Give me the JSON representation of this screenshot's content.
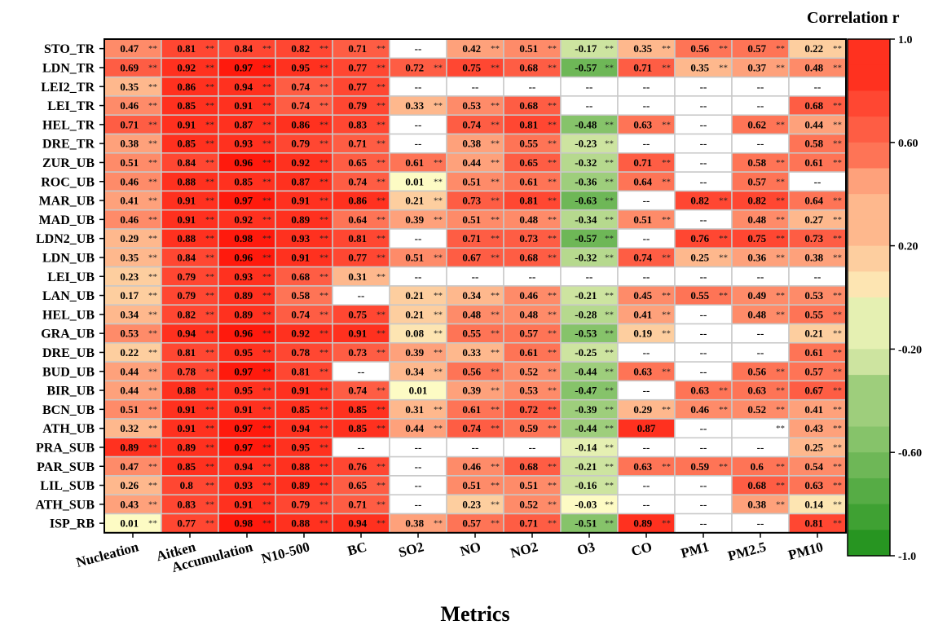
{
  "chart_data": {
    "type": "heatmap",
    "xlabel": "Metrics",
    "colorbar": {
      "title": "Correlation r",
      "range": [
        -1.0,
        1.0
      ],
      "ticks": [
        "1.0",
        "0.60",
        "0.20",
        "-0.20",
        "-0.60",
        "-1.0"
      ],
      "colors": {
        "negative": "#0f8a0f",
        "zero": "#fdfbc4",
        "positive": "#ff1a0d"
      }
    },
    "columns": [
      "Nucleation",
      "Aitken",
      "Accumulation",
      "N10-500",
      "BC",
      "SO2",
      "NO",
      "NO2",
      "O3",
      "CO",
      "PM1",
      "PM2.5",
      "PM10"
    ],
    "rows": [
      "STO_TR",
      "LDN_TR",
      "LEI2_TR",
      "LEI_TR",
      "HEL_TR",
      "DRE_TR",
      "ZUR_UB",
      "ROC_UB",
      "MAR_UB",
      "MAD_UB",
      "LDN2_UB",
      "LDN_UB",
      "LEI_UB",
      "LAN_UB",
      "HEL_UB",
      "GRA_UB",
      "DRE_UB",
      "BUD_UB",
      "BIR_UB",
      "BCN_UB",
      "ATH_UB",
      "PRA_SUB",
      "PAR_SUB",
      "LIL_SUB",
      "ATH_SUB",
      "ISP_RB"
    ],
    "missing_label": "--",
    "significance_mark": "**",
    "cells": [
      [
        [
          0.47,
          "**"
        ],
        [
          0.81,
          "**"
        ],
        [
          0.84,
          "**"
        ],
        [
          0.82,
          "**"
        ],
        [
          0.71,
          "**"
        ],
        null,
        [
          0.42,
          "**"
        ],
        [
          0.51,
          "**"
        ],
        [
          -0.17,
          "**"
        ],
        [
          0.35,
          "**"
        ],
        [
          0.56,
          "**"
        ],
        [
          0.57,
          "**"
        ],
        [
          0.22,
          "**"
        ]
      ],
      [
        [
          0.69,
          "**"
        ],
        [
          0.92,
          "**"
        ],
        [
          0.97,
          "**"
        ],
        [
          0.95,
          "**"
        ],
        [
          0.77,
          "**"
        ],
        [
          0.72,
          "**"
        ],
        [
          0.75,
          "**"
        ],
        [
          0.68,
          "**"
        ],
        [
          -0.57,
          "**"
        ],
        [
          0.71,
          "**"
        ],
        [
          0.35,
          "**"
        ],
        [
          0.37,
          "**"
        ],
        [
          0.48,
          "**"
        ]
      ],
      [
        [
          0.35,
          "**"
        ],
        [
          0.86,
          "**"
        ],
        [
          0.94,
          "**"
        ],
        [
          0.74,
          "**"
        ],
        [
          0.77,
          "**"
        ],
        null,
        null,
        null,
        null,
        null,
        null,
        null,
        null
      ],
      [
        [
          0.46,
          "**"
        ],
        [
          0.85,
          "**"
        ],
        [
          0.91,
          "**"
        ],
        [
          0.74,
          "**"
        ],
        [
          0.79,
          "**"
        ],
        [
          0.33,
          "**"
        ],
        [
          0.53,
          "**"
        ],
        [
          0.68,
          "**"
        ],
        null,
        null,
        null,
        null,
        [
          0.68,
          "**"
        ]
      ],
      [
        [
          0.71,
          "**"
        ],
        [
          0.91,
          "**"
        ],
        [
          0.87,
          "**"
        ],
        [
          0.86,
          "**"
        ],
        [
          0.83,
          "**"
        ],
        null,
        [
          0.74,
          "**"
        ],
        [
          0.81,
          "**"
        ],
        [
          -0.48,
          "**"
        ],
        [
          0.63,
          "**"
        ],
        null,
        [
          0.62,
          "**"
        ],
        [
          0.44,
          "**"
        ]
      ],
      [
        [
          0.38,
          "**"
        ],
        [
          0.85,
          "**"
        ],
        [
          0.93,
          "**"
        ],
        [
          0.79,
          "**"
        ],
        [
          0.71,
          "**"
        ],
        null,
        [
          0.38,
          "**"
        ],
        [
          0.55,
          "**"
        ],
        [
          -0.23,
          "**"
        ],
        null,
        null,
        null,
        [
          0.58,
          "**"
        ]
      ],
      [
        [
          0.51,
          "**"
        ],
        [
          0.84,
          "**"
        ],
        [
          0.96,
          "**"
        ],
        [
          0.92,
          "**"
        ],
        [
          0.65,
          "**"
        ],
        [
          0.61,
          "**"
        ],
        [
          0.44,
          "**"
        ],
        [
          0.65,
          "**"
        ],
        [
          -0.32,
          "**"
        ],
        [
          0.71,
          "**"
        ],
        null,
        [
          0.58,
          "**"
        ],
        [
          0.61,
          "**"
        ]
      ],
      [
        [
          0.46,
          "**"
        ],
        [
          0.88,
          "**"
        ],
        [
          0.85,
          "**"
        ],
        [
          0.87,
          "**"
        ],
        [
          0.74,
          "**"
        ],
        [
          0.01,
          "**"
        ],
        [
          0.51,
          "**"
        ],
        [
          0.61,
          "**"
        ],
        [
          -0.36,
          "**"
        ],
        [
          0.64,
          "**"
        ],
        null,
        [
          0.57,
          "**"
        ],
        null
      ],
      [
        [
          0.41,
          "**"
        ],
        [
          0.91,
          "**"
        ],
        [
          0.97,
          "**"
        ],
        [
          0.91,
          "**"
        ],
        [
          0.86,
          "**"
        ],
        [
          0.21,
          "**"
        ],
        [
          0.73,
          "**"
        ],
        [
          0.81,
          "**"
        ],
        [
          -0.63,
          "**"
        ],
        null,
        [
          0.82,
          "**"
        ],
        [
          0.82,
          "**"
        ],
        [
          0.64,
          "**"
        ]
      ],
      [
        [
          0.46,
          "**"
        ],
        [
          0.91,
          "**"
        ],
        [
          0.92,
          "**"
        ],
        [
          0.89,
          "**"
        ],
        [
          0.64,
          "**"
        ],
        [
          0.39,
          "**"
        ],
        [
          0.51,
          "**"
        ],
        [
          0.48,
          "**"
        ],
        [
          -0.34,
          "**"
        ],
        [
          0.51,
          "**"
        ],
        null,
        [
          0.48,
          "**"
        ],
        [
          0.27,
          "**"
        ]
      ],
      [
        [
          0.29,
          "**"
        ],
        [
          0.88,
          "**"
        ],
        [
          0.98,
          "**"
        ],
        [
          0.93,
          "**"
        ],
        [
          0.81,
          "**"
        ],
        null,
        [
          0.71,
          "**"
        ],
        [
          0.73,
          "**"
        ],
        [
          -0.57,
          "**"
        ],
        null,
        [
          0.76,
          "**"
        ],
        [
          0.75,
          "**"
        ],
        [
          0.73,
          "**"
        ]
      ],
      [
        [
          0.35,
          "**"
        ],
        [
          0.84,
          "**"
        ],
        [
          0.96,
          "**"
        ],
        [
          0.91,
          "**"
        ],
        [
          0.77,
          "**"
        ],
        [
          0.51,
          "**"
        ],
        [
          0.67,
          "**"
        ],
        [
          0.68,
          "**"
        ],
        [
          -0.32,
          "**"
        ],
        [
          0.74,
          "**"
        ],
        [
          0.25,
          "**"
        ],
        [
          0.36,
          "**"
        ],
        [
          0.38,
          "**"
        ]
      ],
      [
        [
          0.23,
          "**"
        ],
        [
          0.79,
          "**"
        ],
        [
          0.93,
          "**"
        ],
        [
          0.68,
          "**"
        ],
        [
          0.31,
          "**"
        ],
        null,
        null,
        null,
        null,
        null,
        null,
        null,
        null
      ],
      [
        [
          0.17,
          "**"
        ],
        [
          0.79,
          "**"
        ],
        [
          0.89,
          "**"
        ],
        [
          0.58,
          "**"
        ],
        null,
        [
          0.21,
          "**"
        ],
        [
          0.34,
          "**"
        ],
        [
          0.46,
          "**"
        ],
        [
          -0.21,
          "**"
        ],
        [
          0.45,
          "**"
        ],
        [
          0.55,
          "**"
        ],
        [
          0.49,
          "**"
        ],
        [
          0.53,
          "**"
        ]
      ],
      [
        [
          0.34,
          "**"
        ],
        [
          0.82,
          "**"
        ],
        [
          0.89,
          "**"
        ],
        [
          0.74,
          "**"
        ],
        [
          0.75,
          "**"
        ],
        [
          0.21,
          "**"
        ],
        [
          0.48,
          "**"
        ],
        [
          0.48,
          "**"
        ],
        [
          -0.28,
          "**"
        ],
        [
          0.41,
          "**"
        ],
        null,
        [
          0.48,
          "**"
        ],
        [
          0.55,
          "**"
        ]
      ],
      [
        [
          0.53,
          "**"
        ],
        [
          0.94,
          "**"
        ],
        [
          0.96,
          "**"
        ],
        [
          0.92,
          "**"
        ],
        [
          0.91,
          "**"
        ],
        [
          0.08,
          "**"
        ],
        [
          0.55,
          "**"
        ],
        [
          0.57,
          "**"
        ],
        [
          -0.53,
          "**"
        ],
        [
          0.19,
          "**"
        ],
        null,
        null,
        [
          0.21,
          "**"
        ]
      ],
      [
        [
          0.22,
          "**"
        ],
        [
          0.81,
          "**"
        ],
        [
          0.95,
          "**"
        ],
        [
          0.78,
          "**"
        ],
        [
          0.73,
          "**"
        ],
        [
          0.39,
          "**"
        ],
        [
          0.33,
          "**"
        ],
        [
          0.61,
          "**"
        ],
        [
          -0.25,
          "**"
        ],
        null,
        null,
        null,
        [
          0.61,
          "**"
        ]
      ],
      [
        [
          0.44,
          "**"
        ],
        [
          0.78,
          "**"
        ],
        [
          0.97,
          "**"
        ],
        [
          0.81,
          "**"
        ],
        null,
        [
          0.34,
          "**"
        ],
        [
          0.56,
          "**"
        ],
        [
          0.52,
          "**"
        ],
        [
          -0.44,
          "**"
        ],
        [
          0.63,
          "**"
        ],
        null,
        [
          0.56,
          "**"
        ],
        [
          0.57,
          "**"
        ]
      ],
      [
        [
          0.44,
          "**"
        ],
        [
          0.88,
          "**"
        ],
        [
          0.95,
          "**"
        ],
        [
          0.91,
          "**"
        ],
        [
          0.74,
          "**"
        ],
        [
          0.01,
          ""
        ],
        [
          0.39,
          "**"
        ],
        [
          0.53,
          "**"
        ],
        [
          -0.47,
          "**"
        ],
        null,
        [
          0.63,
          "**"
        ],
        [
          0.63,
          "**"
        ],
        [
          0.67,
          "**"
        ]
      ],
      [
        [
          0.51,
          "**"
        ],
        [
          0.91,
          "**"
        ],
        [
          0.91,
          "**"
        ],
        [
          0.85,
          "**"
        ],
        [
          0.85,
          "**"
        ],
        [
          0.31,
          "**"
        ],
        [
          0.61,
          "**"
        ],
        [
          0.72,
          "**"
        ],
        [
          -0.39,
          "**"
        ],
        [
          0.29,
          "**"
        ],
        [
          0.46,
          "**"
        ],
        [
          0.52,
          "**"
        ],
        [
          0.41,
          "**"
        ]
      ],
      [
        [
          0.32,
          "**"
        ],
        [
          0.91,
          "**"
        ],
        [
          0.97,
          "**"
        ],
        [
          0.94,
          "**"
        ],
        [
          0.85,
          "**"
        ],
        [
          0.44,
          "**"
        ],
        [
          0.74,
          "**"
        ],
        [
          0.59,
          "**"
        ],
        [
          -0.44,
          "**"
        ],
        [
          0.87,
          ""
        ],
        null,
        "**",
        [
          0.43,
          "**"
        ]
      ],
      [
        [
          0.89,
          "**"
        ],
        [
          0.89,
          "**"
        ],
        [
          0.97,
          "**"
        ],
        [
          0.95,
          "**"
        ],
        null,
        null,
        null,
        null,
        [
          -0.14,
          "**"
        ],
        null,
        null,
        null,
        [
          0.25,
          "**"
        ]
      ],
      [
        [
          0.47,
          "**"
        ],
        [
          0.85,
          "**"
        ],
        [
          0.94,
          "**"
        ],
        [
          0.88,
          "**"
        ],
        [
          0.76,
          "**"
        ],
        null,
        [
          0.46,
          "**"
        ],
        [
          0.68,
          "**"
        ],
        [
          -0.21,
          "**"
        ],
        [
          0.63,
          "**"
        ],
        [
          0.59,
          "**"
        ],
        [
          0.6,
          "**"
        ],
        [
          0.54,
          "**"
        ]
      ],
      [
        [
          0.26,
          "**"
        ],
        [
          0.8,
          "**"
        ],
        [
          0.93,
          "**"
        ],
        [
          0.89,
          "**"
        ],
        [
          0.65,
          "**"
        ],
        null,
        [
          0.51,
          "**"
        ],
        [
          0.51,
          "**"
        ],
        [
          -0.16,
          "**"
        ],
        null,
        null,
        [
          0.68,
          "**"
        ],
        [
          0.63,
          "**"
        ]
      ],
      [
        [
          0.43,
          "**"
        ],
        [
          0.83,
          "**"
        ],
        [
          0.91,
          "**"
        ],
        [
          0.79,
          "**"
        ],
        [
          0.71,
          "**"
        ],
        null,
        [
          0.23,
          "**"
        ],
        [
          0.52,
          "**"
        ],
        [
          -0.03,
          "**"
        ],
        null,
        null,
        [
          0.38,
          "**"
        ],
        [
          0.14,
          "**"
        ]
      ],
      [
        [
          0.01,
          "**"
        ],
        [
          0.77,
          "**"
        ],
        [
          0.98,
          "**"
        ],
        [
          0.88,
          "**"
        ],
        [
          0.94,
          "**"
        ],
        [
          0.38,
          "**"
        ],
        [
          0.57,
          "**"
        ],
        [
          0.71,
          "**"
        ],
        [
          -0.51,
          "**"
        ],
        [
          0.89,
          "**"
        ],
        null,
        null,
        [
          0.81,
          "**"
        ]
      ]
    ]
  }
}
